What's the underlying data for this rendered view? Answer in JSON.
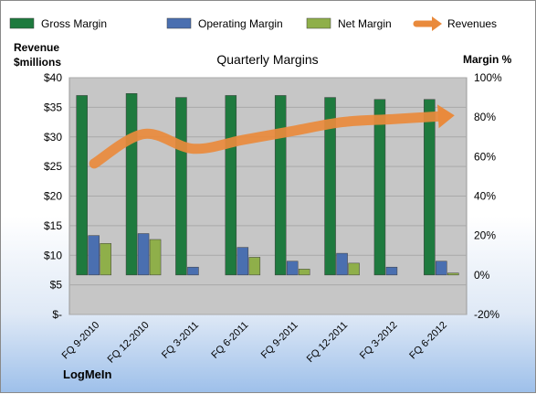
{
  "chart_data": {
    "type": "bar",
    "title": "Quarterly Margins",
    "left_axis_label_line1": "Revenue",
    "left_axis_label_line2": "$millions",
    "right_axis_label": "Margin %",
    "company": "LogMeIn",
    "categories": [
      "FQ 9-2010",
      "FQ 12-2010",
      "FQ 3-2011",
      "FQ 6-2011",
      "FQ 9-2011",
      "FQ 12-2011",
      "FQ 3-2012",
      "FQ 6-2012"
    ],
    "left_ticks": [
      "$-",
      "$5",
      "$10",
      "$15",
      "$20",
      "$25",
      "$30",
      "$35",
      "$40"
    ],
    "right_ticks": [
      "-20%",
      "0%",
      "20%",
      "40%",
      "60%",
      "80%",
      "100%"
    ],
    "left_ylim": [
      0,
      40
    ],
    "right_ylim": [
      -20,
      100
    ],
    "series": [
      {
        "name": "Gross Margin",
        "kind": "bar",
        "axis": "right",
        "color": "#1e7a3e",
        "values": [
          91,
          92,
          90,
          91,
          91,
          90,
          89,
          89
        ]
      },
      {
        "name": "Operating Margin",
        "kind": "bar",
        "axis": "right",
        "color": "#4a6fb0",
        "values": [
          20,
          21,
          4,
          14,
          7,
          11,
          4,
          7
        ]
      },
      {
        "name": "Net Margin",
        "kind": "bar",
        "axis": "right",
        "color": "#8faf4a",
        "values": [
          16,
          18,
          0,
          9,
          3,
          6,
          0,
          1
        ]
      },
      {
        "name": "Revenues",
        "kind": "line",
        "axis": "left",
        "color": "#e98a3c",
        "values": [
          25.5,
          30.5,
          28.0,
          29.5,
          31.0,
          32.5,
          33.0,
          33.5
        ]
      }
    ],
    "legend_position": "top",
    "grid": true
  }
}
